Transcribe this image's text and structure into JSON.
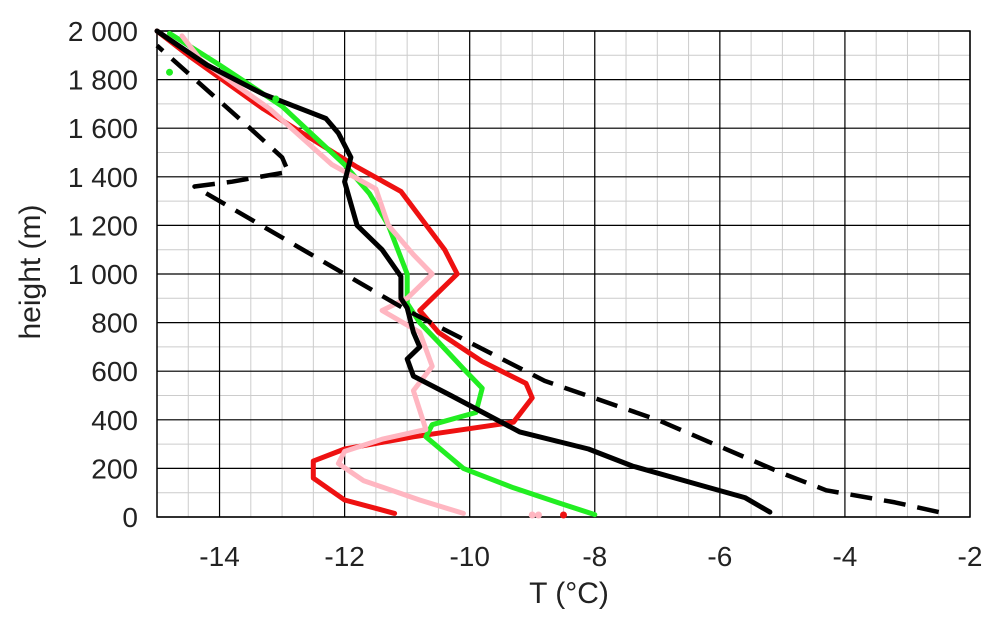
{
  "chart_data": {
    "type": "line",
    "title": "",
    "xlabel": "T (°C)",
    "ylabel": "height (m)",
    "xlim": [
      -15,
      -2
    ],
    "ylim": [
      0,
      2000
    ],
    "xticks": [
      -14,
      -12,
      -10,
      -8,
      -6,
      -4,
      -2
    ],
    "xtick_labels": [
      "-14",
      "-12",
      "-10",
      "-8",
      "-6",
      "-4",
      "-2"
    ],
    "yticks": [
      0,
      200,
      400,
      600,
      800,
      1000,
      1200,
      1400,
      1600,
      1800,
      2000
    ],
    "ytick_labels": [
      "0",
      "200",
      "400",
      "600",
      "800",
      "1 000",
      "1 200",
      "1 400",
      "1 600",
      "1 800",
      "2 000"
    ],
    "grid": true,
    "legend": "none",
    "colors": {
      "red": "#ee1111",
      "green": "#22ee22",
      "pink": "#ffb6c1",
      "black": "#000000",
      "major_grid": "#000000",
      "minor_grid": "#cccccc"
    },
    "series": [
      {
        "color": "#ee1111",
        "style": "solid",
        "x": [
          -11.2,
          -12.0,
          -12.5,
          -12.5,
          -12.0,
          -10.9,
          -9.3,
          -9.0,
          -9.1,
          -9.8,
          -10.5,
          -10.8,
          -10.6,
          -10.2,
          -10.4,
          -11.1,
          -11.8,
          -13.3,
          -14.5,
          -15.0
        ],
        "y": [
          15,
          70,
          160,
          230,
          280,
          330,
          390,
          490,
          550,
          640,
          760,
          850,
          900,
          1000,
          1100,
          1340,
          1440,
          1680,
          1900,
          2000
        ]
      },
      {
        "color": "#22ee22",
        "style": "solid",
        "x": [
          -8.0,
          -8.6,
          -9.3,
          -10.1,
          -10.7,
          -10.6,
          -9.9,
          -9.8,
          -10.1,
          -10.5,
          -10.8,
          -11.0,
          -11.0,
          -11.3,
          -11.6,
          -12.0,
          -13.0,
          -14.0,
          -14.8
        ],
        "y": [
          10,
          60,
          120,
          200,
          330,
          380,
          430,
          530,
          610,
          720,
          800,
          880,
          1000,
          1200,
          1330,
          1450,
          1690,
          1860,
          1990
        ]
      },
      {
        "color": "#ffb6c1",
        "style": "solid",
        "x": [
          -10.1,
          -10.8,
          -11.7,
          -12.1,
          -12.0,
          -11.4,
          -10.7,
          -10.8,
          -10.9,
          -10.6,
          -10.8,
          -11.4,
          -11.0,
          -10.6,
          -10.9,
          -11.3,
          -11.5,
          -12.2,
          -13.2,
          -14.3,
          -14.6
        ],
        "y": [
          15,
          70,
          150,
          220,
          270,
          320,
          360,
          440,
          520,
          620,
          760,
          850,
          900,
          1000,
          1080,
          1200,
          1350,
          1450,
          1680,
          1880,
          1980
        ]
      },
      {
        "color": "#000000",
        "style": "solid",
        "x": [
          -5.2,
          -5.6,
          -6.3,
          -7.4,
          -8.1,
          -9.2,
          -10.3,
          -10.9,
          -11.0,
          -10.8,
          -10.9,
          -11.0,
          -11.1,
          -11.1,
          -11.4,
          -11.8,
          -12.0,
          -11.9,
          -12.1,
          -12.3,
          -12.5,
          -13.3,
          -14.2,
          -15.0
        ],
        "y": [
          20,
          80,
          130,
          210,
          280,
          350,
          500,
          580,
          650,
          700,
          760,
          860,
          900,
          990,
          1100,
          1200,
          1380,
          1480,
          1580,
          1640,
          1660,
          1740,
          1860,
          2000
        ]
      },
      {
        "color": "#000000",
        "style": "dashed",
        "x": [
          -2.5,
          -3.2,
          -4.3,
          -5.0,
          -7.0,
          -8.8,
          -11.0,
          -14.4,
          -13.8,
          -12.9,
          -13.0,
          -13.6,
          -15.0
        ],
        "y": [
          20,
          60,
          110,
          180,
          400,
          560,
          850,
          1360,
          1380,
          1420,
          1480,
          1620,
          1940
        ]
      }
    ],
    "markers": [
      {
        "color": "#22ee22",
        "x": [
          -14.8,
          -13.1
        ],
        "y": [
          1830,
          1720
        ]
      },
      {
        "color": "#ffb6c1",
        "x": [
          -9.0,
          -8.9
        ],
        "y": [
          0,
          0
        ]
      },
      {
        "color": "#ee1111",
        "x": [
          -8.5
        ],
        "y": [
          0
        ]
      }
    ]
  }
}
